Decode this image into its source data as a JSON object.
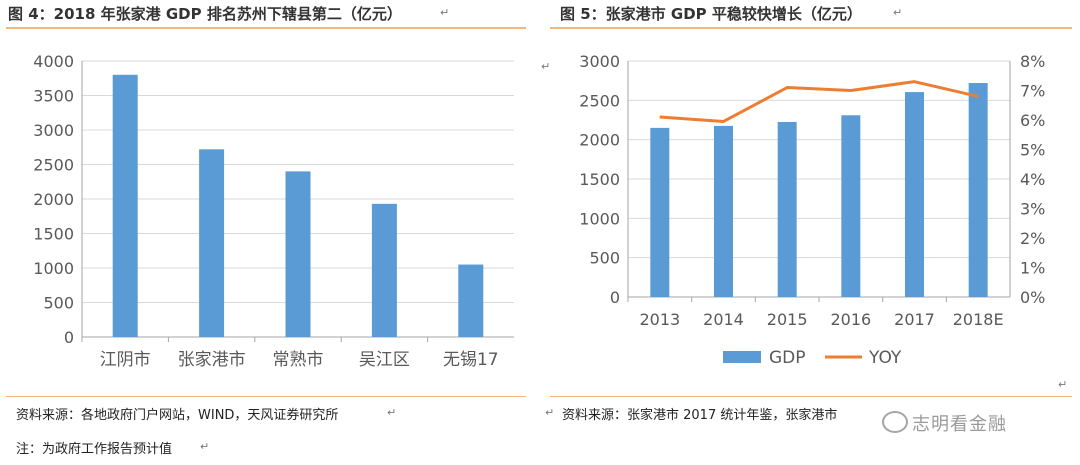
{
  "figure_left": {
    "title": "图 4：2018 年张家港 GDP 排名苏州下辖县第二（亿元）",
    "source": "资料来源：各地政府门户网站，WIND，天风证券研究所",
    "note": "注：为政府工作报告预计值"
  },
  "figure_right": {
    "title": "图 5：张家港市 GDP 平稳较快增长（亿元）",
    "source": "资料来源：张家港市 2017 统计年鉴，张家港市"
  },
  "watermark": "志明看金融",
  "para_mark": "↵",
  "colors": {
    "bar": "#5b9bd5",
    "line": "#ed7d31",
    "rule": "#f3b77f",
    "grid": "#d9d9d9",
    "tick_text": "#595959"
  },
  "chart_data": [
    {
      "type": "bar",
      "categories": [
        "江阴市",
        "张家港市",
        "常熟市",
        "吴江区",
        "无锡17"
      ],
      "values": [
        3800,
        2720,
        2400,
        1930,
        1050
      ],
      "ylim": [
        0,
        4000
      ],
      "yticks": [
        "0",
        "500",
        "1000",
        "1500",
        "2000",
        "2500",
        "3000",
        "3500",
        "4000"
      ],
      "grid": true,
      "legend": "none"
    },
    {
      "type": "bar+line",
      "categories": [
        "2013",
        "2014",
        "2015",
        "2016",
        "2017",
        "2018E"
      ],
      "series": [
        {
          "name": "GDP",
          "type": "bar",
          "axis": "left",
          "values": [
            2150,
            2175,
            2225,
            2310,
            2605,
            2720
          ]
        },
        {
          "name": "YOY",
          "type": "line",
          "axis": "right",
          "values": [
            6.1,
            5.95,
            7.1,
            7.0,
            7.3,
            6.8
          ]
        }
      ],
      "ylim_left": [
        0,
        3000
      ],
      "ylim_right": [
        0,
        8
      ],
      "yticks_left": [
        "0",
        "500",
        "1000",
        "1500",
        "2000",
        "2500",
        "3000"
      ],
      "yticks_right": [
        "0%",
        "1%",
        "2%",
        "3%",
        "4%",
        "5%",
        "6%",
        "7%",
        "8%"
      ],
      "grid": true,
      "legend": "bottom"
    }
  ]
}
